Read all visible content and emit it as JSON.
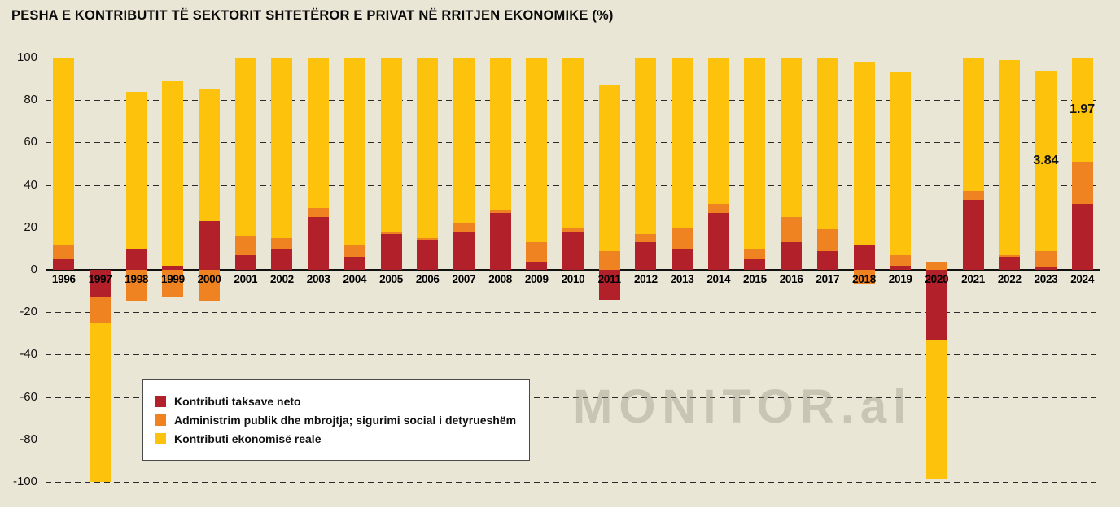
{
  "watermark": {
    "brand": "MONITOR",
    "suffix": ".al"
  },
  "colors": {
    "background": "#e9e6d5",
    "tax_red": "#b2202a",
    "admin_orange": "#ef8322",
    "real_yellow": "#fdc30c",
    "grid": "#2b2b2b",
    "legend_border": "#4a4a4a"
  },
  "chart_data": {
    "type": "bar",
    "stacked": true,
    "title": "PESHA E KONTRIBUTIT TË SEKTORIT SHTETËROR E PRIVAT NË RRITJEN EKONOMIKE (%)",
    "xlabel": "",
    "ylabel": "",
    "ylim": [
      -100,
      100
    ],
    "yticks": [
      100,
      80,
      60,
      40,
      20,
      0,
      -20,
      -40,
      -60,
      -80,
      -100
    ],
    "grid": "dashed-horizontal",
    "legend_position": "inside-bottom-left",
    "categories": [
      "1996",
      "1997",
      "1998",
      "1999",
      "2000",
      "2001",
      "2002",
      "2003",
      "2004",
      "2005",
      "2006",
      "2007",
      "2008",
      "2009",
      "2010",
      "2011",
      "2012",
      "2013",
      "2014",
      "2015",
      "2016",
      "2017",
      "2018",
      "2019",
      "2020",
      "2021",
      "2022",
      "2023",
      "2024"
    ],
    "series": [
      {
        "name": "Kontributi taksave neto",
        "color": "#b2202a",
        "values": [
          5,
          -13,
          10,
          2,
          23,
          7,
          10,
          25,
          6,
          17,
          14,
          18,
          27,
          4,
          18,
          -14,
          13,
          10,
          27,
          5,
          13,
          9,
          12,
          2,
          -33,
          33,
          6,
          1,
          31
        ]
      },
      {
        "name": "Administrim publik dhe mbrojtja; sigurimi social i detyrueshëm",
        "color": "#ef8322",
        "values": [
          7,
          -12,
          -15,
          -13,
          -15,
          9,
          5,
          4,
          6,
          1,
          1,
          4,
          1,
          9,
          2,
          9,
          4,
          10,
          4,
          5,
          12,
          10,
          -7,
          5,
          4,
          4,
          1,
          8,
          20
        ]
      },
      {
        "name": "Kontributi ekonomisë reale",
        "color": "#fdc30c",
        "values": [
          88,
          -75,
          74,
          87,
          62,
          84,
          85,
          71,
          88,
          82,
          85,
          78,
          72,
          87,
          80,
          78,
          83,
          80,
          69,
          90,
          75,
          81,
          86,
          86,
          -66,
          63,
          92,
          85,
          49
        ]
      }
    ],
    "annotations": [
      {
        "text": "3.84",
        "category": "2023",
        "value": 51
      },
      {
        "text": "1.97",
        "category": "2024",
        "value": 75
      }
    ]
  }
}
